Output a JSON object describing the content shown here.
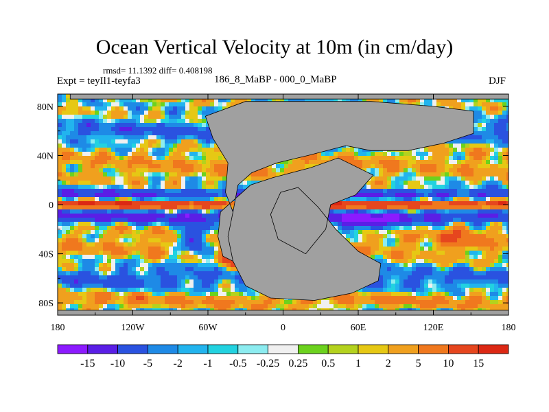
{
  "chart_data": {
    "type": "heatmap",
    "title": "Ocean Vertical Velocity at 10m (in cm/day)",
    "stats_label": "rmsd= 11.1392 diff= 0.408198",
    "left_label": "Expt = teyIl1-teyfa3",
    "center_label": "186_8_MaBP - 000_0_MaBP",
    "right_label": "DJF",
    "x_ticks": [
      "180",
      "120W",
      "60W",
      "0",
      "60E",
      "120E",
      "180"
    ],
    "y_ticks": [
      "80N",
      "40N",
      "0",
      "40S",
      "80S"
    ],
    "x_range": [
      -180,
      180
    ],
    "y_range": [
      -90,
      90
    ],
    "colorbar": {
      "labels": [
        "-15",
        "-10",
        "-5",
        "-2",
        "-1",
        "-0.5",
        "-0.25",
        "0.25",
        "0.5",
        "1",
        "2",
        "5",
        "10",
        "15"
      ],
      "colors": [
        "#8c1aff",
        "#5a1ee6",
        "#2a52e0",
        "#1e8ae6",
        "#22b4ee",
        "#22d2e0",
        "#8cecf0",
        "#f0f0f0",
        "#6cd21e",
        "#b4d21e",
        "#e6c814",
        "#f0a01e",
        "#f0781e",
        "#e6461e",
        "#dc2814"
      ]
    },
    "land_color": "#a0a0a0"
  }
}
